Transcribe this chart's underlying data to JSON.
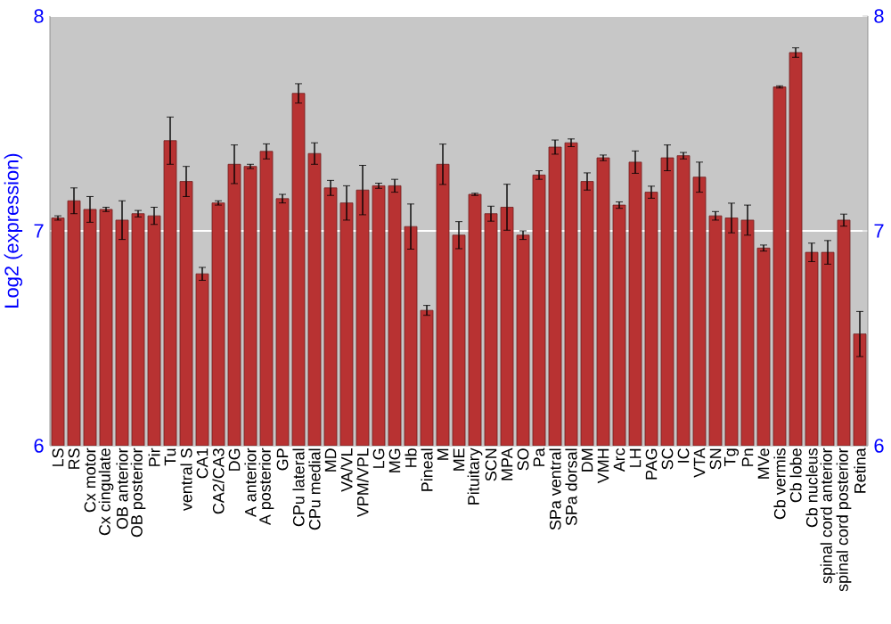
{
  "chart_data": {
    "type": "bar",
    "ylabel": "Log2 (expression)",
    "categories": [
      "LS",
      "RS",
      "Cx motor",
      "Cx cingulate",
      "OB anterior",
      "OB posterior",
      "Pir",
      "Tu",
      "ventral S",
      "CA1",
      "CA2/CA3",
      "DG",
      "A anterior",
      "A posterior",
      "GP",
      "CPu lateral",
      "CPu medial",
      "MD",
      "VA/VL",
      "VPM/VPL",
      "LG",
      "MG",
      "Hb",
      "Pineal",
      "M",
      "ME",
      "Pituitary",
      "SCN",
      "MPA",
      "SO",
      "Pa",
      "SPa ventral",
      "SPa dorsal",
      "DM",
      "VMH",
      "Arc",
      "LH",
      "PAG",
      "SC",
      "IC",
      "VTA",
      "SN",
      "Tg",
      "Pn",
      "MVe",
      "Cb vermis",
      "Cb lobe",
      "Cb nucleus",
      "spinal cord anterior",
      "spinal cord posterior",
      "Retina"
    ],
    "values": [
      7.06,
      7.14,
      7.1,
      7.1,
      7.05,
      7.08,
      7.07,
      7.42,
      7.23,
      6.8,
      7.13,
      7.31,
      7.3,
      7.37,
      7.15,
      7.64,
      7.36,
      7.2,
      7.13,
      7.19,
      7.21,
      7.21,
      7.02,
      6.63,
      7.31,
      6.98,
      7.17,
      7.08,
      7.11,
      6.98,
      7.26,
      7.39,
      7.41,
      7.23,
      7.34,
      7.12,
      7.32,
      7.18,
      7.34,
      7.35,
      7.25,
      7.07,
      7.06,
      7.05,
      6.92,
      7.67,
      7.83,
      6.9,
      6.9,
      7.05,
      6.52
    ],
    "errors": [
      0.01,
      0.06,
      0.06,
      0.01,
      0.09,
      0.015,
      0.04,
      0.11,
      0.07,
      0.03,
      0.01,
      0.09,
      0.01,
      0.035,
      0.02,
      0.045,
      0.05,
      0.035,
      0.08,
      0.115,
      0.012,
      0.03,
      0.105,
      0.023,
      0.094,
      0.063,
      0.005,
      0.035,
      0.107,
      0.02,
      0.02,
      0.033,
      0.018,
      0.04,
      0.013,
      0.015,
      0.052,
      0.028,
      0.06,
      0.015,
      0.07,
      0.02,
      0.069,
      0.07,
      0.014,
      0.005,
      0.022,
      0.043,
      0.055,
      0.028,
      0.105
    ],
    "color": "#b83232",
    "ylim": [
      6,
      8
    ],
    "yticks": [
      6,
      7,
      8
    ],
    "y2lim": [
      6,
      8
    ],
    "y2ticks": [
      6,
      7,
      8
    ],
    "grid": "y"
  }
}
